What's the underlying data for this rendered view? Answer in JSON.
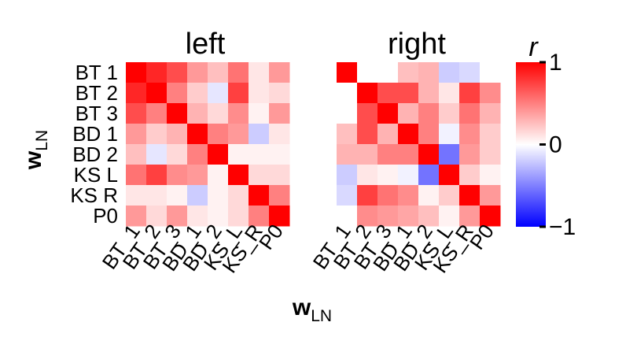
{
  "chart_data": [
    {
      "type": "heatmap",
      "title": "left",
      "xlabel": "w",
      "xlabel_sub": "LN",
      "ylabel": "w",
      "ylabel_sub": "LN",
      "row_labels": [
        "BT 1",
        "BT 2",
        "BT 3",
        "BD 1",
        "BD 2",
        "KS L",
        "KS R",
        "P0"
      ],
      "col_labels": [
        "BT_1",
        "BT_2",
        "BT_3",
        "BD_1",
        "BD_2",
        "KS_L",
        "KS_R",
        "P0"
      ],
      "values": [
        [
          1.0,
          0.85,
          0.7,
          0.4,
          0.25,
          0.55,
          0.1,
          0.4
        ],
        [
          0.85,
          1.0,
          0.5,
          0.2,
          -0.1,
          0.75,
          0.1,
          0.15
        ],
        [
          0.7,
          0.5,
          1.0,
          0.3,
          0.15,
          0.45,
          0.05,
          0.4
        ],
        [
          0.4,
          0.2,
          0.3,
          1.0,
          0.5,
          0.4,
          -0.2,
          0.1
        ],
        [
          0.25,
          -0.1,
          0.15,
          0.5,
          1.0,
          0.05,
          0.05,
          0.05
        ],
        [
          0.55,
          0.75,
          0.45,
          0.4,
          0.05,
          1.0,
          0.15,
          0.15
        ],
        [
          0.1,
          0.1,
          0.05,
          -0.2,
          0.05,
          0.15,
          1.0,
          0.5
        ],
        [
          0.4,
          0.15,
          0.4,
          0.1,
          0.05,
          0.15,
          0.5,
          1.0
        ]
      ]
    },
    {
      "type": "heatmap",
      "title": "right",
      "row_labels": [
        "BT 1",
        "BT 2",
        "BT 3",
        "BD 1",
        "BD 2",
        "KS L",
        "KS R",
        "P0"
      ],
      "col_labels": [
        "BT_1",
        "BT_2",
        "BT_3",
        "BD_1",
        "BD_2",
        "KS_L",
        "KS_R",
        "P0"
      ],
      "values": [
        [
          1.0,
          0.0,
          0.0,
          0.25,
          0.3,
          -0.2,
          -0.15,
          0.0
        ],
        [
          0.0,
          1.0,
          0.7,
          0.7,
          0.3,
          0.1,
          0.75,
          0.45
        ],
        [
          0.0,
          0.7,
          1.0,
          0.3,
          0.5,
          0.2,
          0.55,
          0.3
        ],
        [
          0.25,
          0.7,
          0.3,
          1.0,
          0.5,
          -0.05,
          0.45,
          0.2
        ],
        [
          0.3,
          0.3,
          0.5,
          0.5,
          1.0,
          -0.55,
          0.4,
          0.2
        ],
        [
          -0.2,
          0.1,
          0.05,
          -0.05,
          -0.55,
          1.0,
          0.2,
          0.05
        ],
        [
          -0.15,
          0.75,
          0.55,
          0.45,
          0.05,
          0.2,
          1.0,
          0.4
        ],
        [
          0.0,
          0.45,
          0.4,
          0.35,
          0.25,
          0.05,
          0.4,
          1.0
        ]
      ]
    }
  ],
  "colorbar": {
    "label": "r",
    "ticks": [
      1,
      0,
      -1
    ],
    "tick_labels": [
      "1",
      "0",
      "−1"
    ],
    "range": [
      -1,
      1
    ],
    "colors": {
      "max": "#ff0000",
      "mid": "#ffffff",
      "min": "#0000ff"
    }
  }
}
